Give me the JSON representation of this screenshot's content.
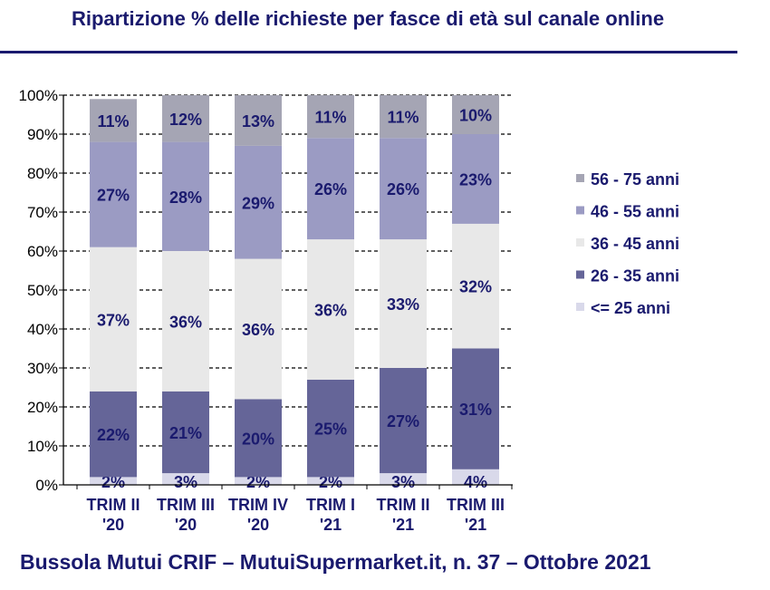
{
  "title": "Ripartizione %  delle richieste per fasce di età sul canale online",
  "footer": "Bussola Mutui CRIF – MutuiSupermarket.it, n. 37 – Ottobre 2021",
  "colors": {
    "text": "#1a1a6e",
    "le25": "#d9d9ea",
    "a26_35": "#656598",
    "a36_45": "#e8e8e8",
    "a46_55": "#9b9bc3",
    "a56_75": "#a5a5b4"
  },
  "chart_data": {
    "type": "bar",
    "stacked": true,
    "categories": [
      [
        "TRIM II",
        "'20"
      ],
      [
        "TRIM III",
        "'20"
      ],
      [
        "TRIM IV",
        "'20"
      ],
      [
        "TRIM I",
        "'21"
      ],
      [
        "TRIM II",
        "'21"
      ],
      [
        "TRIM III",
        "'21"
      ]
    ],
    "series": [
      {
        "name": "<= 25 anni",
        "values": [
          2,
          3,
          2,
          2,
          3,
          4
        ],
        "color_key": "le25"
      },
      {
        "name": "26 - 35 anni",
        "values": [
          22,
          21,
          20,
          25,
          27,
          31
        ],
        "color_key": "a26_35"
      },
      {
        "name": "36 - 45 anni",
        "values": [
          37,
          36,
          36,
          36,
          33,
          32
        ],
        "color_key": "a36_45"
      },
      {
        "name": "46 - 55 anni",
        "values": [
          27,
          28,
          29,
          26,
          26,
          23
        ],
        "color_key": "a46_55"
      },
      {
        "name": "56 - 75 anni",
        "values": [
          11,
          12,
          13,
          11,
          11,
          10
        ],
        "color_key": "a56_75"
      }
    ],
    "y_ticks": [
      "0%",
      "10%",
      "20%",
      "30%",
      "40%",
      "50%",
      "60%",
      "70%",
      "80%",
      "90%",
      "100%"
    ],
    "ylim": [
      0,
      100
    ],
    "grid": true,
    "legend_position": "right",
    "legend_order": [
      "56 - 75 anni",
      "46 - 55 anni",
      "36 - 45 anni",
      "26 - 35 anni",
      "<= 25 anni"
    ]
  }
}
